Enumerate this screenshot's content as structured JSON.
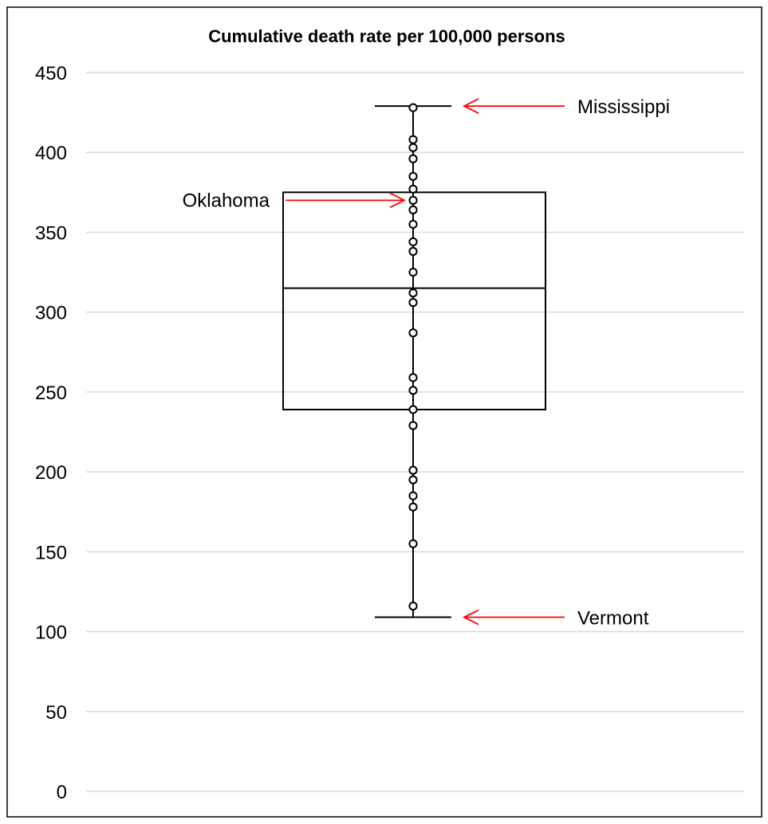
{
  "chart_data": {
    "type": "box",
    "title": "Cumulative death rate per 100,000 persons",
    "xlabel": "",
    "ylabel": "",
    "ylim": [
      0,
      450
    ],
    "yticks": [
      0,
      50,
      100,
      150,
      200,
      250,
      300,
      350,
      400,
      450
    ],
    "grid": true,
    "box": {
      "min": 109,
      "q1": 239,
      "median": 315,
      "q3": 375,
      "max": 429
    },
    "points": [
      428,
      408,
      403,
      396,
      385,
      377,
      370,
      364,
      355,
      344,
      338,
      325,
      312,
      306,
      287,
      259,
      251,
      239,
      229,
      201,
      195,
      185,
      178,
      155,
      116
    ],
    "annotations": [
      {
        "label": "Mississippi",
        "y": 429,
        "side": "right"
      },
      {
        "label": "Oklahoma",
        "y": 370,
        "side": "left"
      },
      {
        "label": "Vermont",
        "y": 109,
        "side": "right"
      }
    ],
    "colors": {
      "axis": "#000000",
      "grid": "#d9d9d9",
      "box": "#000000",
      "arrow": "#ff0000",
      "background": "#ffffff"
    }
  }
}
